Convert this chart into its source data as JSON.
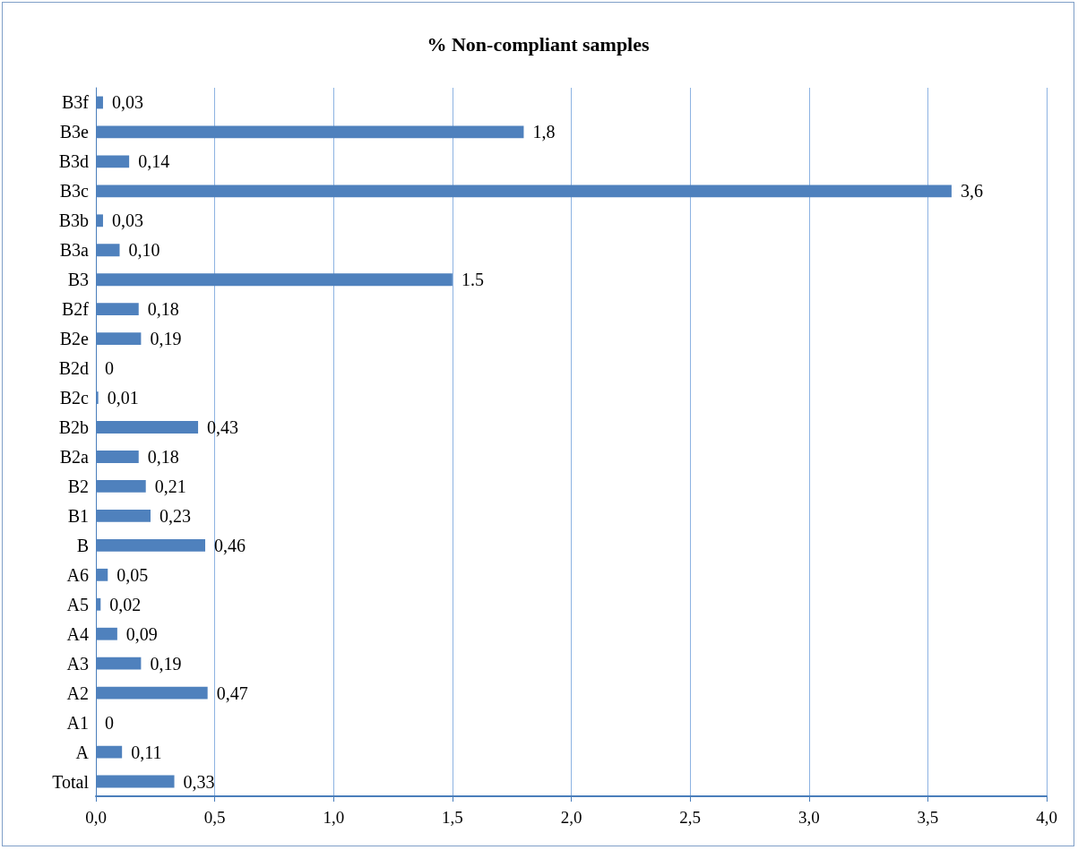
{
  "chart_data": {
    "type": "bar",
    "orientation": "horizontal",
    "title": "% Non-compliant samples",
    "categories": [
      "B3f",
      "B3e",
      "B3d",
      "B3c",
      "B3b",
      "B3a",
      "B3",
      "B2f",
      "B2e",
      "B2d",
      "B2c",
      "B2b",
      "B2a",
      "B2",
      "B1",
      "B",
      "A6",
      "A5",
      "A4",
      "A3",
      "A2",
      "A1",
      "A",
      "Total"
    ],
    "values": [
      0.03,
      1.8,
      0.14,
      3.6,
      0.03,
      0.1,
      1.5,
      0.18,
      0.19,
      0,
      0.01,
      0.43,
      0.18,
      0.21,
      0.23,
      0.46,
      0.05,
      0.02,
      0.09,
      0.19,
      0.47,
      0,
      0.11,
      0.33
    ],
    "value_labels": [
      "0,03",
      "1,8",
      "0,14",
      "3,6",
      "0,03",
      "0,10",
      "1.5",
      "0,18",
      "0,19",
      "0",
      "0,01",
      "0,43",
      "0,18",
      "0,21",
      "0,23",
      "0,46",
      "0,05",
      "0,02",
      "0,09",
      "0,19",
      "0,47",
      "0",
      "0,11",
      "0,33"
    ],
    "color": "#4f81bd",
    "xlim": [
      0,
      4
    ],
    "xticks": [
      {
        "value": 0,
        "label": "0,0"
      },
      {
        "value": 0.5,
        "label": "0,5"
      },
      {
        "value": 1,
        "label": "1,0"
      },
      {
        "value": 1.5,
        "label": "1,5"
      },
      {
        "value": 2,
        "label": "2,0"
      },
      {
        "value": 2.5,
        "label": "2,5"
      },
      {
        "value": 3,
        "label": "3,0"
      },
      {
        "value": 3.5,
        "label": "3,5"
      },
      {
        "value": 4,
        "label": "4,0"
      }
    ],
    "grid": "x"
  }
}
